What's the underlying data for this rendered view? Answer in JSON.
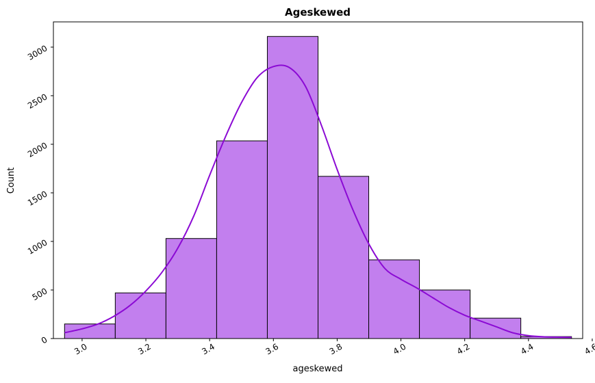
{
  "chart_data": {
    "type": "bar",
    "title": "Ageskewed",
    "xlabel": "ageskewed",
    "ylabel": "Count",
    "xlim": [
      2.91,
      4.57
    ],
    "ylim": [
      0,
      3260
    ],
    "xticks": [
      3.0,
      3.2,
      3.4,
      3.6,
      3.8,
      4.0,
      4.2,
      4.4,
      4.6
    ],
    "xtick_labels": [
      "3.0",
      "3.2",
      "3.4",
      "3.6",
      "3.8",
      "4.0",
      "4.2",
      "4.4",
      "4.6"
    ],
    "yticks": [
      0,
      500,
      1000,
      1500,
      2000,
      2500,
      3000
    ],
    "ytick_labels": [
      "0",
      "500",
      "1000",
      "1500",
      "2000",
      "2500",
      "3000"
    ],
    "bin_edges": [
      2.945,
      3.104,
      3.263,
      3.422,
      3.581,
      3.74,
      3.899,
      4.058,
      4.217,
      4.376,
      4.535
    ],
    "values": [
      150,
      470,
      1030,
      2035,
      3110,
      1670,
      810,
      500,
      210,
      20
    ],
    "kde": {
      "x": [
        2.945,
        3.0,
        3.05,
        3.1,
        3.15,
        3.2,
        3.25,
        3.3,
        3.35,
        3.4,
        3.45,
        3.5,
        3.55,
        3.6,
        3.65,
        3.7,
        3.75,
        3.8,
        3.85,
        3.9,
        3.95,
        4.0,
        4.05,
        4.1,
        4.15,
        4.2,
        4.25,
        4.3,
        4.35,
        4.4,
        4.45,
        4.5,
        4.535
      ],
      "y": [
        60,
        100,
        150,
        230,
        340,
        490,
        680,
        930,
        1260,
        1680,
        2080,
        2430,
        2690,
        2800,
        2790,
        2600,
        2200,
        1740,
        1320,
        970,
        720,
        610,
        520,
        420,
        320,
        240,
        180,
        120,
        60,
        30,
        18,
        14,
        12
      ]
    },
    "bar_color": "#c27fee",
    "edge_color": "#000000",
    "kde_color": "#8b0ad4",
    "grid": false,
    "legend": "none"
  }
}
